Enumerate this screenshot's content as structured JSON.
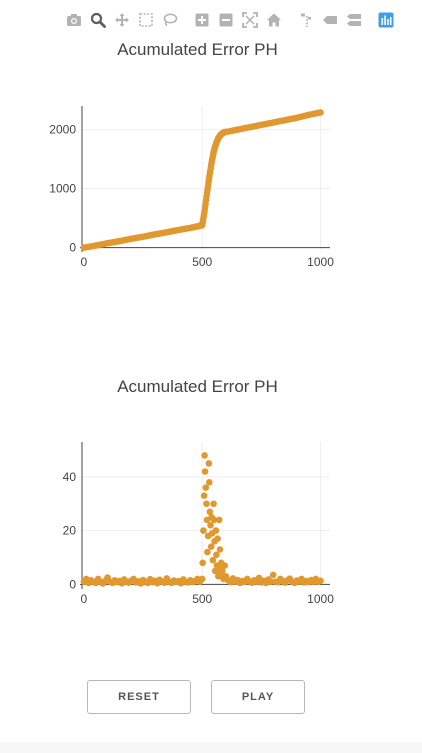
{
  "modebar": {
    "buttons": [
      {
        "name": "camera-icon",
        "active": false
      },
      {
        "name": "zoom-icon",
        "active": true
      },
      {
        "name": "pan-icon",
        "active": false
      },
      {
        "name": "box-select-icon",
        "active": false
      },
      {
        "name": "lasso-select-icon",
        "active": false
      },
      {
        "name": "zoom-in-icon",
        "active": false
      },
      {
        "name": "zoom-out-icon",
        "active": false
      },
      {
        "name": "autoscale-icon",
        "active": false
      },
      {
        "name": "home-icon",
        "active": false
      },
      {
        "name": "spike-lines-icon",
        "active": false
      },
      {
        "name": "hover-closest-icon",
        "active": false
      },
      {
        "name": "hover-compare-icon",
        "active": false
      },
      {
        "name": "plotly-logo-icon",
        "active": false
      }
    ],
    "icon_color": "#b3b3b3",
    "active_color": "#5e5e5e",
    "logo_color": "#3f9ee8"
  },
  "chart_data": [
    {
      "type": "scatter",
      "title": "Acumulated Error PH",
      "xlabel": "",
      "ylabel": "",
      "xlim": [
        -8,
        1040
      ],
      "ylim": [
        -40,
        2400
      ],
      "xticks": [
        0,
        500,
        1000
      ],
      "yticks": [
        0,
        1000,
        2000
      ],
      "grid": true,
      "color": "#e0982f",
      "x": [
        0,
        50,
        100,
        150,
        200,
        250,
        300,
        350,
        400,
        450,
        480,
        500,
        510,
        520,
        530,
        540,
        550,
        560,
        570,
        580,
        590,
        600,
        650,
        700,
        750,
        800,
        850,
        900,
        950,
        1000
      ],
      "y": [
        0,
        35,
        75,
        110,
        150,
        185,
        225,
        260,
        300,
        335,
        360,
        380,
        620,
        920,
        1200,
        1450,
        1650,
        1780,
        1870,
        1920,
        1950,
        1960,
        2000,
        2040,
        2080,
        2120,
        2160,
        2200,
        2250,
        2290
      ]
    },
    {
      "type": "scatter",
      "title": "Acumulated Error PH",
      "xlabel": "",
      "ylabel": "",
      "xlim": [
        -8,
        1040
      ],
      "ylim": [
        -1,
        53
      ],
      "xticks": [
        0,
        500,
        1000
      ],
      "yticks": [
        0,
        20,
        40
      ],
      "grid": true,
      "color": "#e0982f",
      "x": [
        0,
        10,
        20,
        30,
        40,
        50,
        60,
        70,
        80,
        90,
        100,
        110,
        120,
        130,
        140,
        150,
        160,
        170,
        180,
        190,
        200,
        210,
        220,
        230,
        240,
        250,
        260,
        270,
        280,
        290,
        300,
        310,
        320,
        330,
        340,
        350,
        360,
        370,
        380,
        390,
        400,
        410,
        420,
        430,
        440,
        450,
        460,
        470,
        480,
        490,
        500,
        502,
        505,
        508,
        510,
        512,
        515,
        518,
        520,
        522,
        525,
        528,
        530,
        532,
        535,
        538,
        540,
        542,
        545,
        548,
        550,
        552,
        555,
        558,
        560,
        562,
        565,
        568,
        570,
        572,
        575,
        578,
        580,
        585,
        590,
        595,
        600,
        610,
        620,
        630,
        640,
        650,
        660,
        670,
        680,
        690,
        700,
        710,
        720,
        730,
        740,
        750,
        760,
        770,
        780,
        790,
        800,
        810,
        820,
        830,
        840,
        850,
        860,
        870,
        880,
        890,
        900,
        910,
        920,
        930,
        940,
        950,
        960,
        970,
        980,
        990,
        1000
      ],
      "y": [
        1,
        2,
        0.5,
        1.5,
        1,
        0.5,
        2,
        1,
        0.3,
        1.2,
        2.5,
        1,
        0.5,
        1.5,
        0.8,
        1.2,
        0.4,
        1.8,
        1,
        0.6,
        1.4,
        2,
        0.7,
        1.1,
        0.3,
        1.6,
        1,
        0.5,
        1.9,
        0.8,
        1.3,
        0.4,
        1.7,
        1,
        0.6,
        2.2,
        1,
        0.5,
        1.4,
        0.9,
        1.2,
        0.4,
        1.8,
        1,
        0.7,
        1.5,
        0.8,
        1.2,
        2,
        1,
        2,
        8,
        20,
        33,
        48,
        42,
        36,
        30,
        24,
        12,
        18,
        45,
        38,
        27,
        22,
        14,
        25,
        19,
        9,
        30,
        24,
        16,
        5,
        20,
        11,
        7,
        17,
        3,
        6,
        24,
        13,
        4,
        8,
        5,
        2,
        7,
        3,
        1.5,
        0.8,
        2.2,
        1,
        1.6,
        0.5,
        1.2,
        0.9,
        2,
        1.1,
        0.6,
        1.5,
        1,
        2.4,
        0.7,
        1.3,
        0.5,
        1.8,
        1,
        3.5,
        1,
        0.8,
        2,
        1.2,
        0.6,
        1.5,
        2.1,
        1,
        0.5,
        1.4,
        1,
        2,
        0.7,
        1.2,
        0.8,
        1.6,
        1,
        2,
        0.9,
        1.3
      ]
    }
  ],
  "controls": {
    "reset_label": "RESET",
    "play_label": "PLAY"
  }
}
